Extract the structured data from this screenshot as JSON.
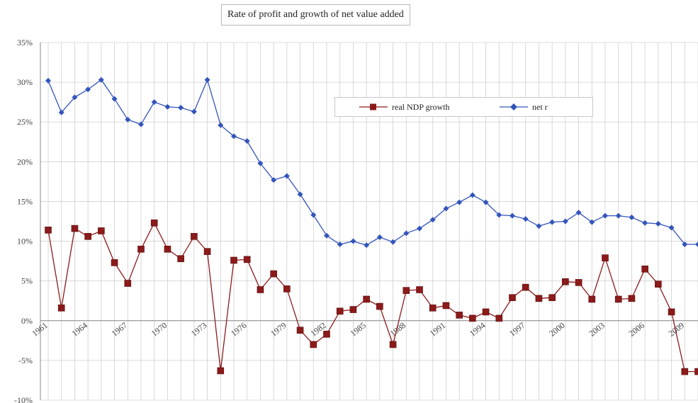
{
  "chart_data": {
    "type": "line",
    "title": "Rate of profit and growth of net value added",
    "xlabel": "",
    "ylabel": "",
    "ylim": [
      -10,
      35
    ],
    "y_ticks": [
      "-10%",
      "-5%",
      "0%",
      "5%",
      "10%",
      "15%",
      "20%",
      "25%",
      "30%",
      "35%"
    ],
    "x_tick_labels": [
      "1961",
      "1964",
      "1967",
      "1970",
      "1973",
      "1976",
      "1979",
      "1982",
      "1985",
      "1988",
      "1991",
      "1994",
      "1997",
      "2000",
      "2003",
      "2006",
      "2009"
    ],
    "x": [
      1961,
      1962,
      1963,
      1964,
      1965,
      1966,
      1967,
      1968,
      1969,
      1970,
      1971,
      1972,
      1973,
      1974,
      1975,
      1976,
      1977,
      1978,
      1979,
      1980,
      1981,
      1982,
      1983,
      1984,
      1985,
      1986,
      1987,
      1988,
      1989,
      1990,
      1991,
      1992,
      1993,
      1994,
      1995,
      1996,
      1997,
      1998,
      1999,
      2000,
      2001,
      2002,
      2003,
      2004,
      2005,
      2006,
      2007,
      2008,
      2009,
      2010
    ],
    "grid": true,
    "legend_position": "top-right",
    "series": [
      {
        "name": "real NDP growth",
        "color": "#8b1a1a",
        "marker": "square",
        "values": [
          11.4,
          1.6,
          11.6,
          10.6,
          11.3,
          7.3,
          4.7,
          9.0,
          12.3,
          9.0,
          7.8,
          10.6,
          8.7,
          -6.3,
          7.6,
          7.7,
          3.9,
          5.9,
          4.0,
          -1.2,
          -3.0,
          -1.7,
          1.2,
          1.4,
          2.7,
          1.8,
          -3.0,
          3.8,
          3.9,
          1.6,
          1.9,
          0.7,
          0.3,
          1.1,
          0.3,
          2.9,
          4.2,
          2.8,
          2.9,
          4.9,
          4.8,
          2.7,
          7.9,
          2.7,
          2.8,
          6.5,
          4.6,
          1.1,
          -6.4,
          -6.4
        ]
      },
      {
        "name": "net r",
        "color": "#3355bb",
        "marker": "diamond",
        "values": [
          30.2,
          26.2,
          28.1,
          29.1,
          30.3,
          27.9,
          25.3,
          24.7,
          27.5,
          26.9,
          26.8,
          26.3,
          30.3,
          24.6,
          23.2,
          22.6,
          19.8,
          17.7,
          18.2,
          15.9,
          13.3,
          10.7,
          9.6,
          10.0,
          9.5,
          10.5,
          9.9,
          11.0,
          11.6,
          12.7,
          14.1,
          14.9,
          15.8,
          14.9,
          13.3,
          13.2,
          12.8,
          11.9,
          12.4,
          12.5,
          13.6,
          12.4,
          13.2,
          13.2,
          13.0,
          12.3,
          12.2,
          11.7,
          9.6,
          9.6
        ]
      }
    ]
  }
}
